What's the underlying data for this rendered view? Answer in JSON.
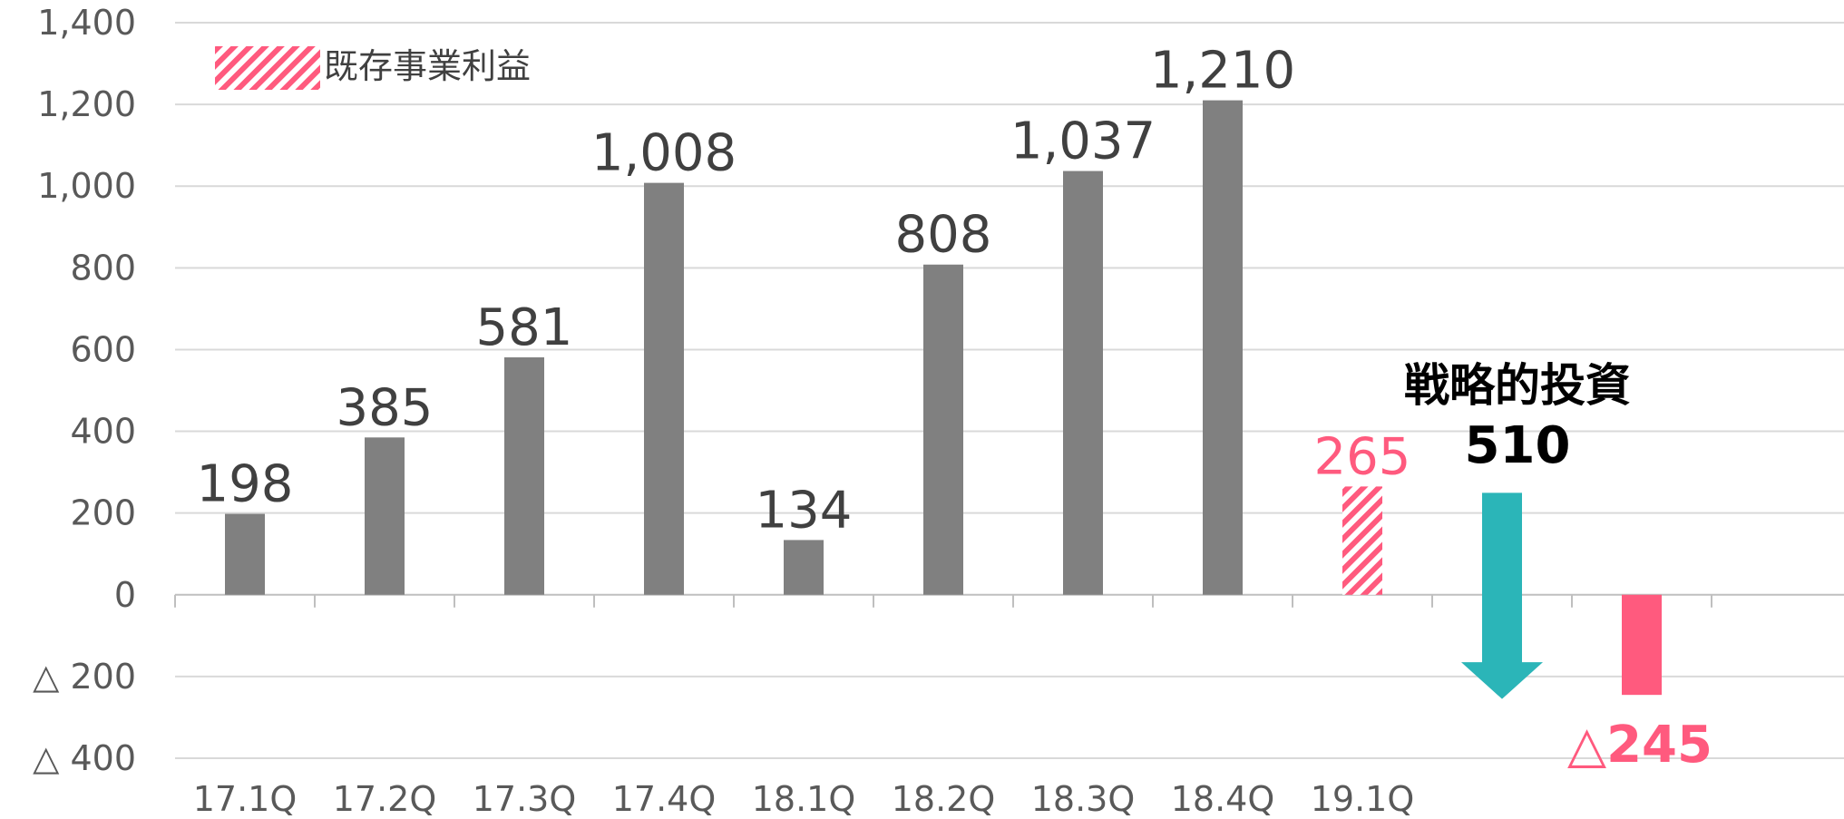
{
  "chart_data": {
    "type": "bar",
    "categories": [
      "17.1Q",
      "17.2Q",
      "17.3Q",
      "17.4Q",
      "18.1Q",
      "18.2Q",
      "18.3Q",
      "18.4Q",
      "19.1Q"
    ],
    "values": [
      198,
      385,
      581,
      1008,
      134,
      808,
      1037,
      1210,
      265
    ],
    "value_labels": [
      "198",
      "385",
      "581",
      "1,008",
      "134",
      "808",
      "1,037",
      "1,210",
      "265"
    ],
    "ylim": [
      -400,
      1400
    ],
    "y_ticks": [
      1400,
      1200,
      1000,
      800,
      600,
      400,
      200,
      0,
      -200,
      -400
    ],
    "y_tick_labels": [
      "1,400",
      "1,200",
      "1,000",
      "800",
      "600",
      "400",
      "200",
      "0",
      "△ 200",
      "△ 400"
    ],
    "grid": true,
    "legend": {
      "label": "既存事業利益",
      "placement": "top-left"
    },
    "strategic_investment": {
      "label": "戦略的投資",
      "value": -510,
      "value_label": "510"
    },
    "result": {
      "value": -245,
      "value_label": "△245"
    },
    "colors": {
      "bar": "#808080",
      "highlight": "#ff5a7e",
      "arrow": "#2bb5b8",
      "grid": "#d9d9d9",
      "axis_text": "#595959",
      "label_text": "#404040",
      "emphasis_text": "#000000"
    }
  }
}
